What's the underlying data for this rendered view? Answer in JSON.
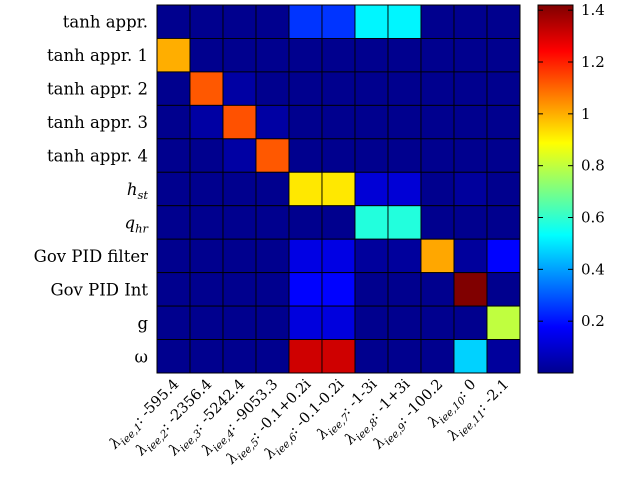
{
  "chart_data": {
    "type": "heatmap",
    "title": "",
    "xlabel": "",
    "ylabel": "",
    "rows": [
      "tanh appr.",
      "tanh appr. 1",
      "tanh appr. 2",
      "tanh appr. 3",
      "tanh appr. 4",
      "h_st",
      "q_hr",
      "Gov PID filter",
      "Gov PID Int",
      "g",
      "ω"
    ],
    "columns": [
      "λ_iee,1: -595.4",
      "λ_iee,2: -2356.4",
      "λ_iee,3: -5242.4",
      "λ_iee,4: -9053.3",
      "λ_iee,5: -0.1+0.2i",
      "λ_iee,6: -0.1-0.2i",
      "λ_iee,7: -1-3i",
      "λ_iee,8: -1+3i",
      "λ_iee,9: -100.2",
      "λ_iee,10: 0",
      "λ_iee,11: -2.1"
    ],
    "values": [
      [
        0.02,
        0.02,
        0.02,
        0.02,
        0.25,
        0.25,
        0.52,
        0.52,
        0.02,
        0.02,
        0.02
      ],
      [
        1.0,
        0.02,
        0.02,
        0.02,
        0.02,
        0.02,
        0.02,
        0.02,
        0.02,
        0.02,
        0.02
      ],
      [
        0.02,
        1.12,
        0.05,
        0.02,
        0.02,
        0.02,
        0.02,
        0.02,
        0.02,
        0.02,
        0.02
      ],
      [
        0.02,
        0.05,
        1.13,
        0.05,
        0.02,
        0.02,
        0.02,
        0.02,
        0.02,
        0.02,
        0.02
      ],
      [
        0.02,
        0.02,
        0.05,
        1.12,
        0.02,
        0.02,
        0.02,
        0.02,
        0.02,
        0.02,
        0.02
      ],
      [
        0.02,
        0.02,
        0.02,
        0.02,
        0.92,
        0.92,
        0.12,
        0.12,
        0.02,
        0.04,
        0.02
      ],
      [
        0.02,
        0.02,
        0.02,
        0.02,
        0.02,
        0.02,
        0.58,
        0.58,
        0.02,
        0.02,
        0.02
      ],
      [
        0.02,
        0.02,
        0.02,
        0.02,
        0.14,
        0.14,
        0.04,
        0.04,
        1.01,
        0.04,
        0.18
      ],
      [
        0.02,
        0.02,
        0.02,
        0.02,
        0.18,
        0.18,
        0.02,
        0.02,
        0.02,
        1.43,
        0.02
      ],
      [
        0.02,
        0.02,
        0.02,
        0.02,
        0.13,
        0.13,
        0.02,
        0.02,
        0.02,
        0.02,
        0.8
      ],
      [
        0.02,
        0.02,
        0.02,
        0.02,
        1.31,
        1.31,
        0.02,
        0.02,
        0.02,
        0.47,
        0.04
      ]
    ],
    "colorbar": {
      "min": 0,
      "max": 1.42,
      "ticks": [
        0.2,
        0.4,
        0.6,
        0.8,
        1,
        1.2,
        1.4
      ],
      "tick_labels": [
        "0.2",
        "0.4",
        "0.6",
        "0.8",
        "1",
        "1.2",
        "1.4"
      ],
      "colormap": "jet"
    },
    "grid": true,
    "legend": "none"
  }
}
